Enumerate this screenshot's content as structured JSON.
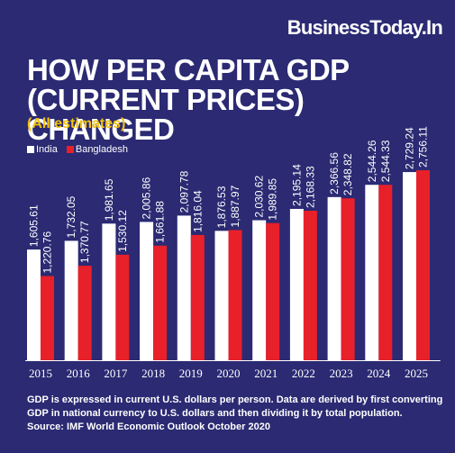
{
  "brand": "BusinessToday.In",
  "title_line1": "HOW PER CAPITA GDP",
  "title_line2": "(CURRENT PRICES) CHANGED",
  "subtitle": "(All estimates)",
  "legend": [
    {
      "label": "India",
      "color": "#ffffff"
    },
    {
      "label": "Bangladesh",
      "color": "#e8202a"
    }
  ],
  "footnote_line1": "GDP is expressed in current U.S. dollars per person. Data are derived by first converting",
  "footnote_line2": "GDP in national currency to U.S. dollars and then dividing it by total population.",
  "footnote_line3": "Source: IMF World Economic Outlook October 2020",
  "chart_data": {
    "type": "bar",
    "categories": [
      "2015",
      "2016",
      "2017",
      "2018",
      "2019",
      "2020",
      "2021",
      "2022",
      "2023",
      "2024",
      "2025"
    ],
    "series": [
      {
        "name": "India",
        "color": "#ffffff",
        "values": [
          1605.61,
          1732.05,
          1981.65,
          2005.86,
          2097.78,
          1876.53,
          2030.62,
          2195.14,
          2366.56,
          2544.26,
          2729.24
        ],
        "labels": [
          "1,605.61",
          "1,732.05",
          "1,981.65",
          "2,005.86",
          "2,097.78",
          "1,876.53",
          "2,030.62",
          "2,195.14",
          "2,366.56",
          "2,544.26",
          "2,729.24"
        ]
      },
      {
        "name": "Bangladesh",
        "color": "#e8202a",
        "values": [
          1220.76,
          1370.77,
          1530.12,
          1661.88,
          1816.04,
          1887.97,
          1989.85,
          2168.33,
          2348.82,
          2544.33,
          2756.11
        ],
        "labels": [
          "1,220.76",
          "1,370.77",
          "1,530.12",
          "1,661.88",
          "1,816.04",
          "1,887.97",
          "1,989.85",
          "2,168.33",
          "2,348.82",
          "2,544.33",
          "2,756.11"
        ]
      }
    ],
    "ylim": [
      0,
      2900
    ],
    "grid": false,
    "legend_position": "top-left"
  }
}
